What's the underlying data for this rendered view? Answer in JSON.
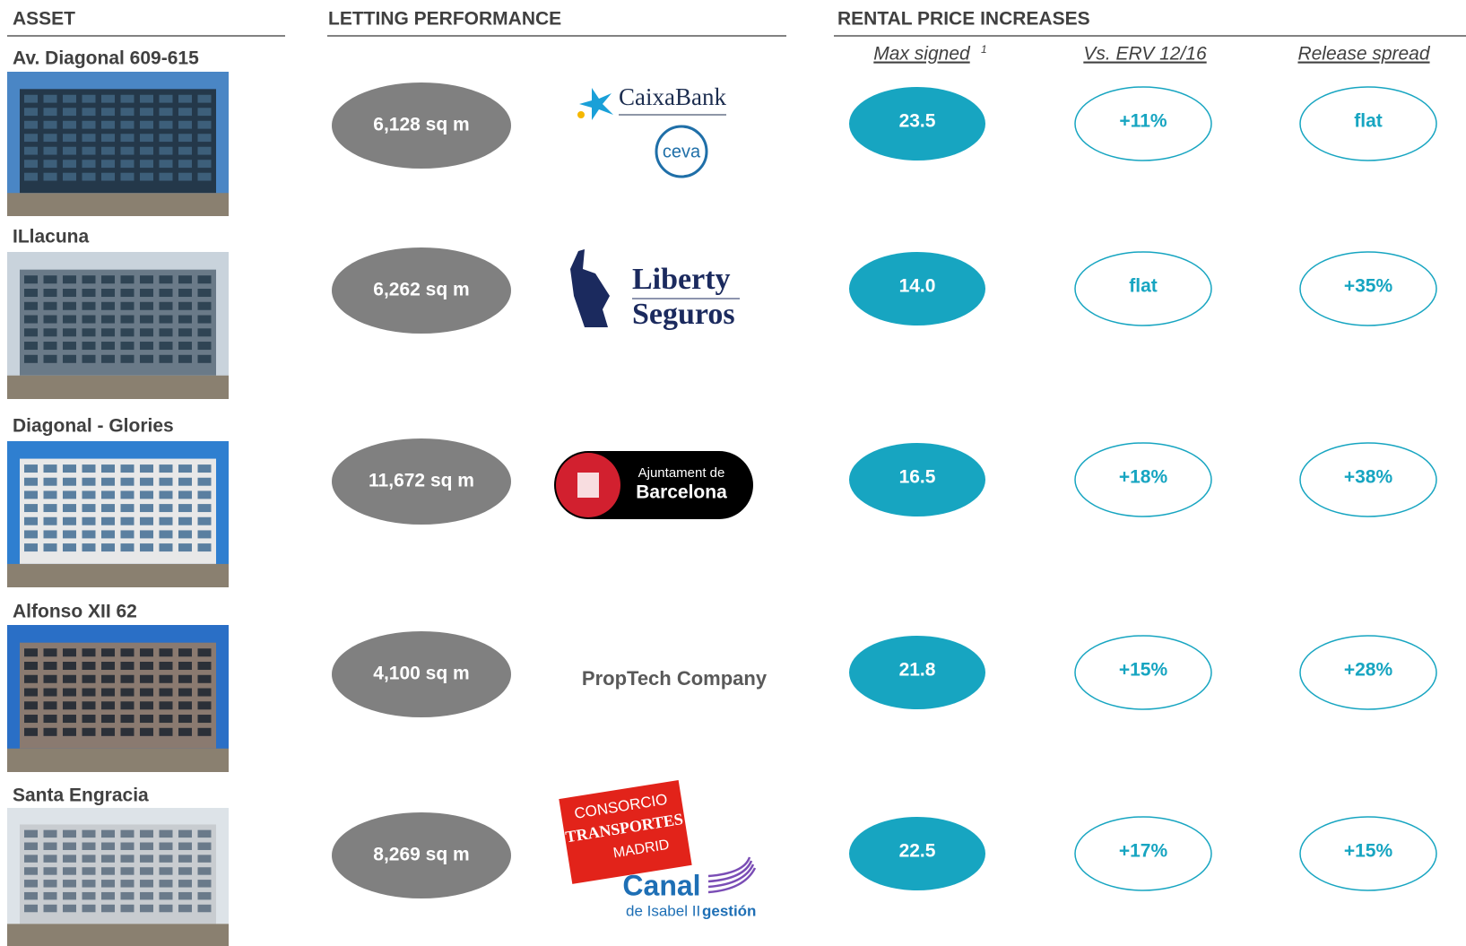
{
  "headers": {
    "asset": "ASSET",
    "letting": "LETTING PERFORMANCE",
    "rental": "RENTAL PRICE INCREASES"
  },
  "subheaders": {
    "max_signed": "Max signed",
    "footnote": "1",
    "vs_erv": "Vs. ERV 12/16",
    "release_spread": "Release spread"
  },
  "rows": [
    {
      "asset": "Av. Diagonal 609-615",
      "area": "6,128 sq m",
      "tenants": [
        "CaixaBank",
        "ceva"
      ],
      "max_signed": "23.5",
      "vs_erv": "+11%",
      "release_spread": "flat"
    },
    {
      "asset": "ILlacuna",
      "area": "6,262 sq m",
      "tenants": [
        "Liberty",
        "Seguros"
      ],
      "max_signed": "14.0",
      "vs_erv": "flat",
      "release_spread": "+35%"
    },
    {
      "asset": "Diagonal - Glories",
      "area": "11,672 sq m",
      "tenants": [
        "Ajuntament de",
        "Barcelona"
      ],
      "max_signed": "16.5",
      "vs_erv": "+18%",
      "release_spread": "+38%"
    },
    {
      "asset": "Alfonso XII 62",
      "area": "4,100 sq m",
      "tenants": [
        "PropTech Company"
      ],
      "max_signed": "21.8",
      "vs_erv": "+15%",
      "release_spread": "+28%"
    },
    {
      "asset": "Santa Engracia",
      "area": "8,269 sq m",
      "tenants": [
        "CONSORCIO",
        "TRANSPORTES",
        "MADRID",
        "Canal",
        "de Isabel II",
        "gestión"
      ],
      "max_signed": "22.5",
      "vs_erv": "+17%",
      "release_spread": "+15%"
    }
  ]
}
